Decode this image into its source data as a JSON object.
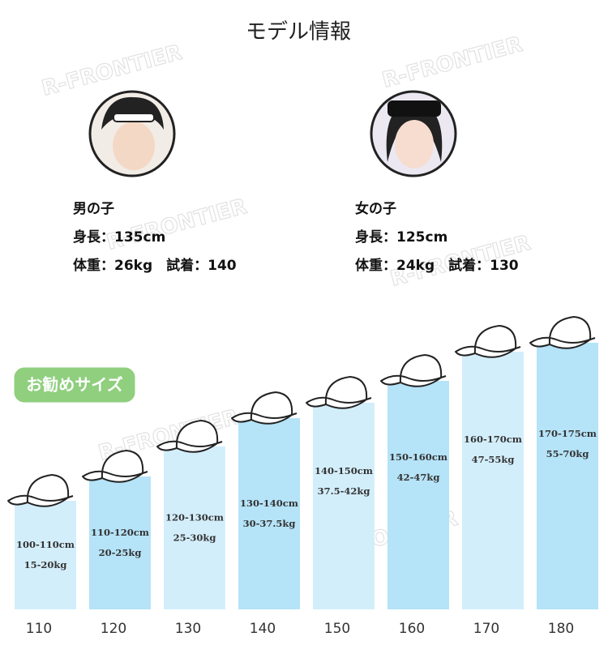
{
  "title": "モデル情報",
  "watermark": "R-FRONTIER",
  "models": [
    {
      "label": "男の子",
      "height": "身長：135cm",
      "weight_fit": "体重：26kg　試着：140"
    },
    {
      "label": "女の子",
      "height": "身長：125cm",
      "weight_fit": "体重：24kg　試着：130"
    }
  ],
  "badge": "お勧めサイズ",
  "sizes": [
    {
      "size": "110",
      "height": "100-110cm",
      "weight": "15-20kg"
    },
    {
      "size": "120",
      "height": "110-120cm",
      "weight": "20-25kg"
    },
    {
      "size": "130",
      "height": "120-130cm",
      "weight": "25-30kg"
    },
    {
      "size": "140",
      "height": "130-140cm",
      "weight": "30-37.5kg"
    },
    {
      "size": "150",
      "height": "140-150cm",
      "weight": "37.5-42kg"
    },
    {
      "size": "160",
      "height": "150-160cm",
      "weight": "42-47kg"
    },
    {
      "size": "170",
      "height": "160-170cm",
      "weight": "47-55kg"
    },
    {
      "size": "180",
      "height": "170-175cm",
      "weight": "55-70kg"
    }
  ]
}
